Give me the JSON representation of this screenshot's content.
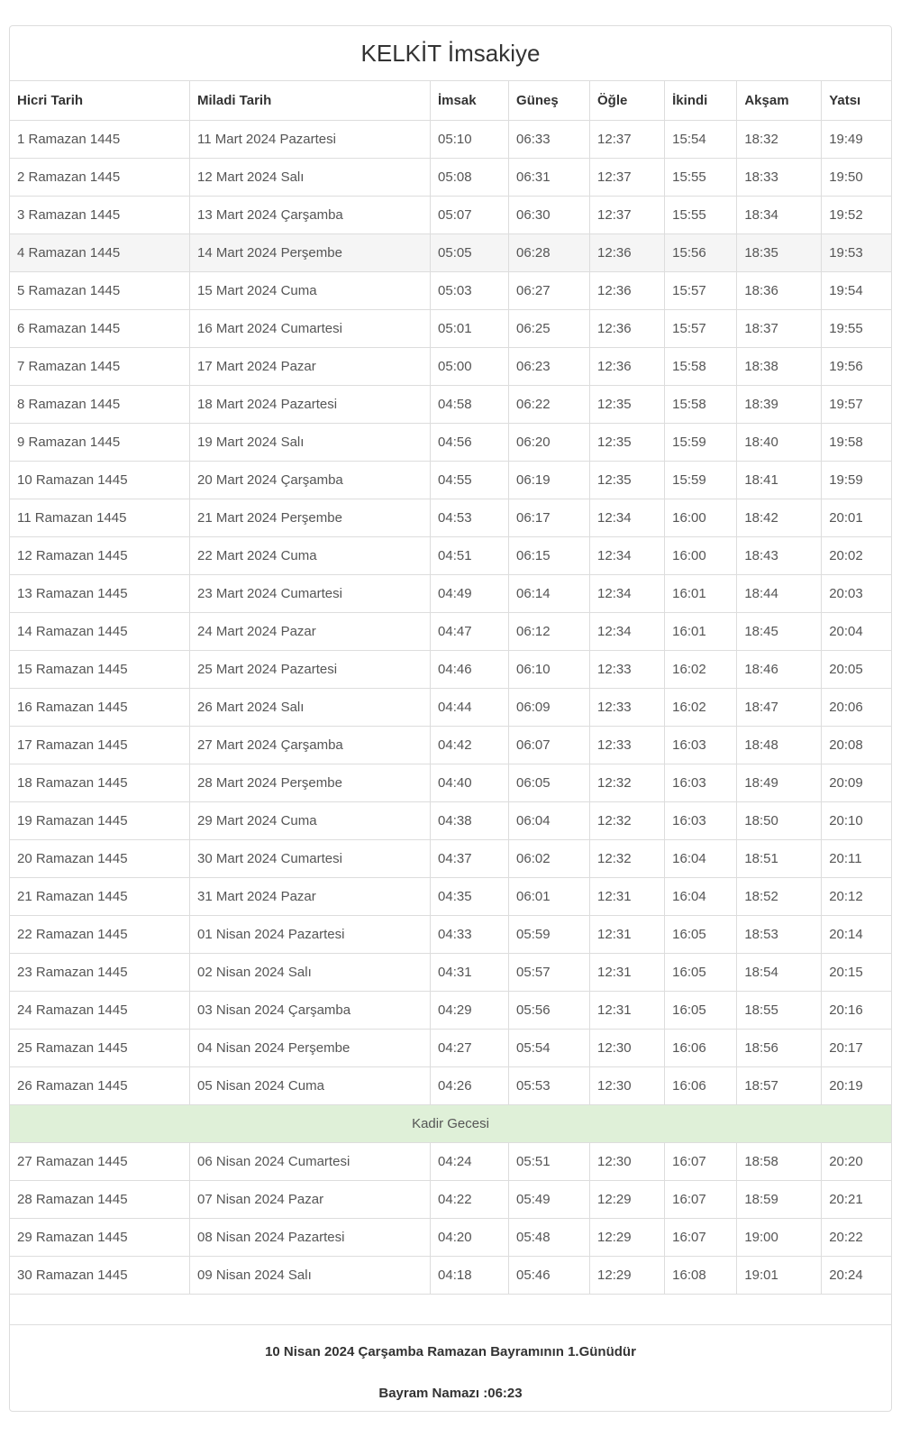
{
  "title": "KELKİT İmsakiye",
  "table": {
    "headers": [
      "Hicri Tarih",
      "Miladi Tarih",
      "İmsak",
      "Güneş",
      "Öğle",
      "İkindi",
      "Akşam",
      "Yatsı"
    ],
    "rows": [
      [
        "1 Ramazan 1445",
        "11 Mart 2024 Pazartesi",
        "05:10",
        "06:33",
        "12:37",
        "15:54",
        "18:32",
        "19:49"
      ],
      [
        "2 Ramazan 1445",
        "12 Mart 2024 Salı",
        "05:08",
        "06:31",
        "12:37",
        "15:55",
        "18:33",
        "19:50"
      ],
      [
        "3 Ramazan 1445",
        "13 Mart 2024 Çarşamba",
        "05:07",
        "06:30",
        "12:37",
        "15:55",
        "18:34",
        "19:52"
      ],
      [
        "4 Ramazan 1445",
        "14 Mart 2024 Perşembe",
        "05:05",
        "06:28",
        "12:36",
        "15:56",
        "18:35",
        "19:53"
      ],
      [
        "5 Ramazan 1445",
        "15 Mart 2024 Cuma",
        "05:03",
        "06:27",
        "12:36",
        "15:57",
        "18:36",
        "19:54"
      ],
      [
        "6 Ramazan 1445",
        "16 Mart 2024 Cumartesi",
        "05:01",
        "06:25",
        "12:36",
        "15:57",
        "18:37",
        "19:55"
      ],
      [
        "7 Ramazan 1445",
        "17 Mart 2024 Pazar",
        "05:00",
        "06:23",
        "12:36",
        "15:58",
        "18:38",
        "19:56"
      ],
      [
        "8 Ramazan 1445",
        "18 Mart 2024 Pazartesi",
        "04:58",
        "06:22",
        "12:35",
        "15:58",
        "18:39",
        "19:57"
      ],
      [
        "9 Ramazan 1445",
        "19 Mart 2024 Salı",
        "04:56",
        "06:20",
        "12:35",
        "15:59",
        "18:40",
        "19:58"
      ],
      [
        "10 Ramazan 1445",
        "20 Mart 2024 Çarşamba",
        "04:55",
        "06:19",
        "12:35",
        "15:59",
        "18:41",
        "19:59"
      ],
      [
        "11 Ramazan 1445",
        "21 Mart 2024 Perşembe",
        "04:53",
        "06:17",
        "12:34",
        "16:00",
        "18:42",
        "20:01"
      ],
      [
        "12 Ramazan 1445",
        "22 Mart 2024 Cuma",
        "04:51",
        "06:15",
        "12:34",
        "16:00",
        "18:43",
        "20:02"
      ],
      [
        "13 Ramazan 1445",
        "23 Mart 2024 Cumartesi",
        "04:49",
        "06:14",
        "12:34",
        "16:01",
        "18:44",
        "20:03"
      ],
      [
        "14 Ramazan 1445",
        "24 Mart 2024 Pazar",
        "04:47",
        "06:12",
        "12:34",
        "16:01",
        "18:45",
        "20:04"
      ],
      [
        "15 Ramazan 1445",
        "25 Mart 2024 Pazartesi",
        "04:46",
        "06:10",
        "12:33",
        "16:02",
        "18:46",
        "20:05"
      ],
      [
        "16 Ramazan 1445",
        "26 Mart 2024 Salı",
        "04:44",
        "06:09",
        "12:33",
        "16:02",
        "18:47",
        "20:06"
      ],
      [
        "17 Ramazan 1445",
        "27 Mart 2024 Çarşamba",
        "04:42",
        "06:07",
        "12:33",
        "16:03",
        "18:48",
        "20:08"
      ],
      [
        "18 Ramazan 1445",
        "28 Mart 2024 Perşembe",
        "04:40",
        "06:05",
        "12:32",
        "16:03",
        "18:49",
        "20:09"
      ],
      [
        "19 Ramazan 1445",
        "29 Mart 2024 Cuma",
        "04:38",
        "06:04",
        "12:32",
        "16:03",
        "18:50",
        "20:10"
      ],
      [
        "20 Ramazan 1445",
        "30 Mart 2024 Cumartesi",
        "04:37",
        "06:02",
        "12:32",
        "16:04",
        "18:51",
        "20:11"
      ],
      [
        "21 Ramazan 1445",
        "31 Mart 2024 Pazar",
        "04:35",
        "06:01",
        "12:31",
        "16:04",
        "18:52",
        "20:12"
      ],
      [
        "22 Ramazan 1445",
        "01 Nisan 2024 Pazartesi",
        "04:33",
        "05:59",
        "12:31",
        "16:05",
        "18:53",
        "20:14"
      ],
      [
        "23 Ramazan 1445",
        "02 Nisan 2024 Salı",
        "04:31",
        "05:57",
        "12:31",
        "16:05",
        "18:54",
        "20:15"
      ],
      [
        "24 Ramazan 1445",
        "03 Nisan 2024 Çarşamba",
        "04:29",
        "05:56",
        "12:31",
        "16:05",
        "18:55",
        "20:16"
      ],
      [
        "25 Ramazan 1445",
        "04 Nisan 2024 Perşembe",
        "04:27",
        "05:54",
        "12:30",
        "16:06",
        "18:56",
        "20:17"
      ],
      [
        "26 Ramazan 1445",
        "05 Nisan 2024 Cuma",
        "04:26",
        "05:53",
        "12:30",
        "16:06",
        "18:57",
        "20:19"
      ],
      [
        "27 Ramazan 1445",
        "06 Nisan 2024 Cumartesi",
        "04:24",
        "05:51",
        "12:30",
        "16:07",
        "18:58",
        "20:20"
      ],
      [
        "28 Ramazan 1445",
        "07 Nisan 2024 Pazar",
        "04:22",
        "05:49",
        "12:29",
        "16:07",
        "18:59",
        "20:21"
      ],
      [
        "29 Ramazan 1445",
        "08 Nisan 2024 Pazartesi",
        "04:20",
        "05:48",
        "12:29",
        "16:07",
        "19:00",
        "20:22"
      ],
      [
        "30 Ramazan 1445",
        "09 Nisan 2024 Salı",
        "04:18",
        "05:46",
        "12:29",
        "16:08",
        "19:01",
        "20:24"
      ]
    ],
    "today_row_index": 3,
    "kadir_row": {
      "label": "Kadir Gecesi",
      "insert_after_index": 25
    }
  },
  "footer": {
    "line1": "10 Nisan 2024 Çarşamba Ramazan Bayramının 1.Günüdür",
    "line2": "Bayram Namazı :06:23"
  },
  "colors": {
    "border": "#dddddd",
    "body_text": "#555555",
    "heading_text": "#333333",
    "kadir_row_bg": "#dff0d8",
    "today_row_bg": "#f5f5f5"
  }
}
